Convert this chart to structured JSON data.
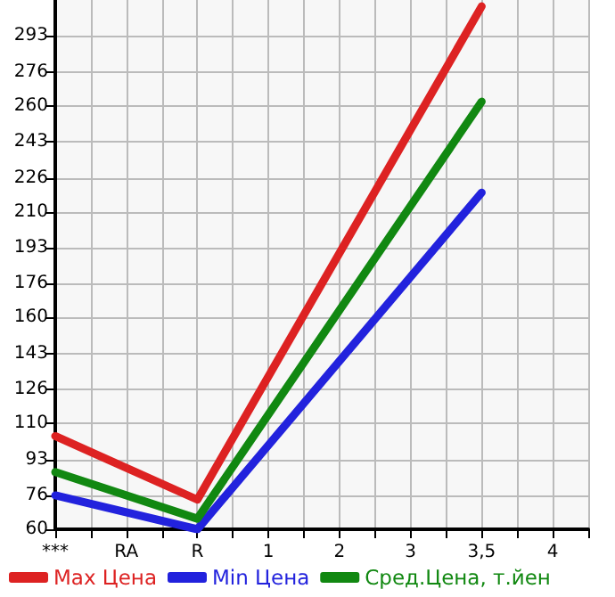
{
  "chart_data": {
    "type": "line",
    "categories": [
      "***",
      "RA",
      "R",
      "1",
      "2",
      "3",
      "3,5",
      "4"
    ],
    "series": [
      {
        "name": "Max Цена",
        "color": "#dd2222",
        "values": [
          104,
          null,
          74,
          null,
          null,
          null,
          307,
          null
        ]
      },
      {
        "name": "Min Цена",
        "color": "#2222dd",
        "values": [
          76,
          null,
          60,
          null,
          null,
          null,
          219,
          null
        ]
      },
      {
        "name": "Сред.Цена, т.йен",
        "color": "#118811",
        "values": [
          87,
          null,
          65,
          null,
          null,
          null,
          262,
          null
        ]
      }
    ],
    "ylim": [
      60,
      310
    ],
    "yticks": [
      60,
      76,
      93,
      110,
      126,
      143,
      160,
      176,
      193,
      210,
      226,
      243,
      260,
      276,
      293
    ],
    "grid": true,
    "legend": "bottom",
    "marker": "none",
    "line_style": "solid"
  }
}
